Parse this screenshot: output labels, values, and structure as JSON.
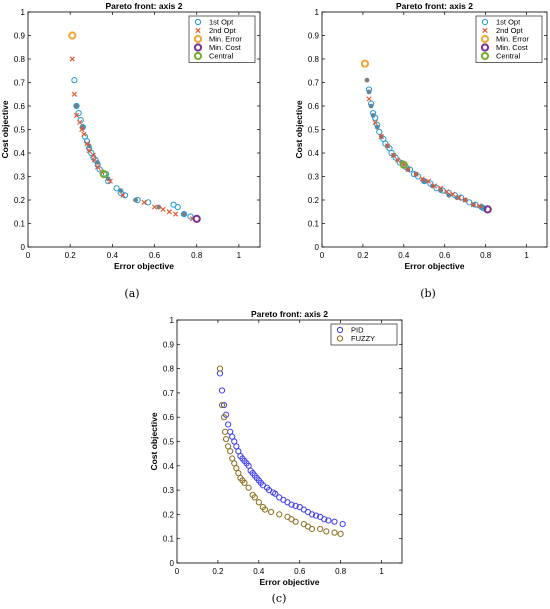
{
  "captions": [
    "(a)",
    "(b)",
    "(c)"
  ],
  "colors": {
    "first_opt": "#1f9ad6",
    "second_opt": "#e8542a",
    "min_error": "#f0a830",
    "min_cost": "#7e2f8e",
    "central": "#77ac30",
    "filled_marker": "#7f7f7f",
    "pid": "#3c3cf0",
    "fuzzy": "#8a6e1c"
  },
  "chart_data": [
    {
      "type": "scatter",
      "title": "Pareto front: axis 2",
      "xlabel": "Error objective",
      "ylabel": "Cost objective",
      "xlim": [
        0,
        1.1
      ],
      "ylim": [
        0,
        1
      ],
      "xticks": [
        "0",
        "0.2",
        "0.4",
        "0.6",
        "0.8",
        "1"
      ],
      "yticks": [
        "0",
        "0.1",
        "0.2",
        "0.3",
        "0.4",
        "0.5",
        "0.6",
        "0.7",
        "0.8",
        "0.9",
        "1"
      ],
      "legend_position": "top-right",
      "series": [
        {
          "name": "1st Opt",
          "marker": "circle",
          "color_key": "first_opt",
          "points": [
            [
              0.22,
              0.71
            ],
            [
              0.23,
              0.6
            ],
            [
              0.24,
              0.57
            ],
            [
              0.25,
              0.54
            ],
            [
              0.26,
              0.51
            ],
            [
              0.27,
              0.47
            ],
            [
              0.28,
              0.45
            ],
            [
              0.29,
              0.42
            ],
            [
              0.3,
              0.4
            ],
            [
              0.31,
              0.38
            ],
            [
              0.32,
              0.37
            ],
            [
              0.33,
              0.35
            ],
            [
              0.34,
              0.33
            ],
            [
              0.36,
              0.31
            ],
            [
              0.37,
              0.31
            ],
            [
              0.38,
              0.28
            ],
            [
              0.42,
              0.25
            ],
            [
              0.44,
              0.23
            ],
            [
              0.46,
              0.22
            ],
            [
              0.52,
              0.2
            ],
            [
              0.57,
              0.19
            ],
            [
              0.69,
              0.18
            ],
            [
              0.71,
              0.17
            ],
            [
              0.74,
              0.14
            ],
            [
              0.77,
              0.13
            ]
          ]
        },
        {
          "name": "2nd Opt",
          "marker": "x",
          "color_key": "second_opt",
          "points": [
            [
              0.21,
              0.8
            ],
            [
              0.22,
              0.65
            ],
            [
              0.23,
              0.56
            ],
            [
              0.245,
              0.53
            ],
            [
              0.255,
              0.5
            ],
            [
              0.265,
              0.48
            ],
            [
              0.28,
              0.44
            ],
            [
              0.29,
              0.41
            ],
            [
              0.31,
              0.39
            ],
            [
              0.315,
              0.37
            ],
            [
              0.33,
              0.34
            ],
            [
              0.35,
              0.32
            ],
            [
              0.39,
              0.28
            ],
            [
              0.45,
              0.22
            ],
            [
              0.55,
              0.19
            ],
            [
              0.6,
              0.17
            ],
            [
              0.64,
              0.16
            ],
            [
              0.67,
              0.15
            ],
            [
              0.7,
              0.14
            ],
            [
              0.78,
              0.12
            ]
          ]
        },
        {
          "name": "Min. Error",
          "marker": "circle-thick",
          "color_key": "min_error",
          "points": [
            [
              0.21,
              0.9
            ]
          ]
        },
        {
          "name": "Min. Cost",
          "marker": "circle-thick",
          "color_key": "min_cost",
          "points": [
            [
              0.8,
              0.12
            ]
          ]
        },
        {
          "name": "Central",
          "marker": "circle-thick",
          "color_key": "central",
          "points": [
            [
              0.36,
              0.31
            ]
          ]
        }
      ],
      "filled_points": [
        [
          0.23,
          0.6
        ],
        [
          0.26,
          0.51
        ],
        [
          0.29,
          0.43
        ],
        [
          0.33,
          0.36
        ],
        [
          0.38,
          0.29
        ],
        [
          0.44,
          0.24
        ],
        [
          0.51,
          0.2
        ],
        [
          0.62,
          0.17
        ],
        [
          0.74,
          0.14
        ]
      ]
    },
    {
      "type": "scatter",
      "title": "Pareto front: axis 2",
      "xlabel": "Error objective",
      "ylabel": "Cost objective",
      "xlim": [
        0,
        1.1
      ],
      "ylim": [
        0,
        1
      ],
      "xticks": [
        "0",
        "0.2",
        "0.4",
        "0.6",
        "0.8",
        "1"
      ],
      "yticks": [
        "0",
        "0.1",
        "0.2",
        "0.3",
        "0.4",
        "0.5",
        "0.6",
        "0.7",
        "0.8",
        "0.9",
        "1"
      ],
      "legend_position": "top-right",
      "series": [
        {
          "name": "1st Opt",
          "marker": "circle",
          "color_key": "first_opt",
          "points": [
            [
              0.23,
              0.67
            ],
            [
              0.24,
              0.61
            ],
            [
              0.25,
              0.57
            ],
            [
              0.26,
              0.55
            ],
            [
              0.27,
              0.52
            ],
            [
              0.28,
              0.49
            ],
            [
              0.3,
              0.46
            ],
            [
              0.31,
              0.44
            ],
            [
              0.33,
              0.42
            ],
            [
              0.34,
              0.4
            ],
            [
              0.36,
              0.38
            ],
            [
              0.38,
              0.36
            ],
            [
              0.41,
              0.34
            ],
            [
              0.43,
              0.33
            ],
            [
              0.45,
              0.31
            ],
            [
              0.47,
              0.3
            ],
            [
              0.5,
              0.28
            ],
            [
              0.53,
              0.27
            ],
            [
              0.56,
              0.25
            ],
            [
              0.59,
              0.24
            ],
            [
              0.62,
              0.23
            ],
            [
              0.65,
              0.22
            ],
            [
              0.68,
              0.21
            ],
            [
              0.72,
              0.19
            ],
            [
              0.75,
              0.18
            ],
            [
              0.78,
              0.17
            ],
            [
              0.79,
              0.165
            ]
          ]
        },
        {
          "name": "2nd Opt",
          "marker": "x",
          "color_key": "second_opt",
          "points": [
            [
              0.23,
              0.63
            ],
            [
              0.26,
              0.53
            ],
            [
              0.29,
              0.47
            ],
            [
              0.32,
              0.43
            ],
            [
              0.35,
              0.39
            ],
            [
              0.37,
              0.37
            ],
            [
              0.4,
              0.35
            ],
            [
              0.42,
              0.33
            ],
            [
              0.46,
              0.31
            ],
            [
              0.49,
              0.29
            ],
            [
              0.52,
              0.28
            ],
            [
              0.55,
              0.26
            ],
            [
              0.58,
              0.25
            ],
            [
              0.61,
              0.235
            ],
            [
              0.64,
              0.225
            ],
            [
              0.67,
              0.21
            ],
            [
              0.7,
              0.2
            ],
            [
              0.74,
              0.18
            ],
            [
              0.77,
              0.175
            ]
          ]
        },
        {
          "name": "Min. Error",
          "marker": "circle-thick",
          "color_key": "min_error",
          "points": [
            [
              0.21,
              0.78
            ]
          ]
        },
        {
          "name": "Min. Cost",
          "marker": "circle-thick",
          "color_key": "min_cost",
          "points": [
            [
              0.81,
              0.16
            ]
          ]
        },
        {
          "name": "Central",
          "marker": "circle-thick",
          "color_key": "central",
          "points": [
            [
              0.4,
              0.35
            ]
          ]
        }
      ],
      "filled_points": [
        [
          0.22,
          0.71
        ],
        [
          0.23,
          0.66
        ],
        [
          0.24,
          0.6
        ],
        [
          0.25,
          0.56
        ],
        [
          0.27,
          0.51
        ],
        [
          0.29,
          0.47
        ],
        [
          0.32,
          0.43
        ],
        [
          0.35,
          0.39
        ],
        [
          0.39,
          0.36
        ],
        [
          0.42,
          0.33
        ],
        [
          0.46,
          0.31
        ],
        [
          0.5,
          0.28
        ],
        [
          0.54,
          0.26
        ],
        [
          0.58,
          0.24
        ],
        [
          0.62,
          0.22
        ],
        [
          0.66,
          0.21
        ],
        [
          0.7,
          0.2
        ],
        [
          0.74,
          0.18
        ],
        [
          0.78,
          0.17
        ]
      ]
    },
    {
      "type": "scatter",
      "title": "Pareto front: axis 2",
      "xlabel": "Error objective",
      "ylabel": "Cost objective",
      "xlim": [
        0,
        1.1
      ],
      "ylim": [
        0,
        1
      ],
      "xticks": [
        "0",
        "0.2",
        "0.4",
        "0.6",
        "0.8",
        "1"
      ],
      "yticks": [
        "0",
        "0.1",
        "0.2",
        "0.3",
        "0.4",
        "0.5",
        "0.6",
        "0.7",
        "0.8",
        "0.9",
        "1"
      ],
      "legend_position": "top-right",
      "series": [
        {
          "name": "PID",
          "marker": "circle",
          "color_key": "pid",
          "points": [
            [
              0.21,
              0.78
            ],
            [
              0.22,
              0.71
            ],
            [
              0.23,
              0.65
            ],
            [
              0.24,
              0.61
            ],
            [
              0.25,
              0.57
            ],
            [
              0.26,
              0.54
            ],
            [
              0.27,
              0.52
            ],
            [
              0.28,
              0.5
            ],
            [
              0.29,
              0.48
            ],
            [
              0.3,
              0.46
            ],
            [
              0.31,
              0.44
            ],
            [
              0.32,
              0.43
            ],
            [
              0.33,
              0.42
            ],
            [
              0.34,
              0.41
            ],
            [
              0.35,
              0.4
            ],
            [
              0.36,
              0.38
            ],
            [
              0.37,
              0.37
            ],
            [
              0.38,
              0.36
            ],
            [
              0.39,
              0.35
            ],
            [
              0.4,
              0.34
            ],
            [
              0.41,
              0.33
            ],
            [
              0.42,
              0.32
            ],
            [
              0.44,
              0.31
            ],
            [
              0.45,
              0.3
            ],
            [
              0.47,
              0.29
            ],
            [
              0.48,
              0.285
            ],
            [
              0.5,
              0.27
            ],
            [
              0.52,
              0.26
            ],
            [
              0.54,
              0.25
            ],
            [
              0.56,
              0.24
            ],
            [
              0.58,
              0.235
            ],
            [
              0.6,
              0.23
            ],
            [
              0.62,
              0.22
            ],
            [
              0.64,
              0.21
            ],
            [
              0.66,
              0.2
            ],
            [
              0.68,
              0.195
            ],
            [
              0.7,
              0.19
            ],
            [
              0.72,
              0.18
            ],
            [
              0.74,
              0.175
            ],
            [
              0.77,
              0.17
            ],
            [
              0.81,
              0.16
            ]
          ]
        },
        {
          "name": "FUZZY",
          "marker": "circle",
          "color_key": "fuzzy",
          "points": [
            [
              0.21,
              0.8
            ],
            [
              0.22,
              0.65
            ],
            [
              0.23,
              0.6
            ],
            [
              0.235,
              0.54
            ],
            [
              0.24,
              0.51
            ],
            [
              0.25,
              0.48
            ],
            [
              0.26,
              0.46
            ],
            [
              0.27,
              0.43
            ],
            [
              0.28,
              0.41
            ],
            [
              0.29,
              0.39
            ],
            [
              0.3,
              0.37
            ],
            [
              0.31,
              0.35
            ],
            [
              0.32,
              0.34
            ],
            [
              0.33,
              0.33
            ],
            [
              0.35,
              0.31
            ],
            [
              0.37,
              0.28
            ],
            [
              0.38,
              0.27
            ],
            [
              0.4,
              0.25
            ],
            [
              0.42,
              0.23
            ],
            [
              0.43,
              0.22
            ],
            [
              0.46,
              0.21
            ],
            [
              0.5,
              0.2
            ],
            [
              0.54,
              0.19
            ],
            [
              0.56,
              0.18
            ],
            [
              0.58,
              0.17
            ],
            [
              0.62,
              0.16
            ],
            [
              0.64,
              0.15
            ],
            [
              0.66,
              0.14
            ],
            [
              0.7,
              0.14
            ],
            [
              0.73,
              0.13
            ],
            [
              0.77,
              0.125
            ],
            [
              0.8,
              0.12
            ]
          ]
        }
      ]
    }
  ]
}
